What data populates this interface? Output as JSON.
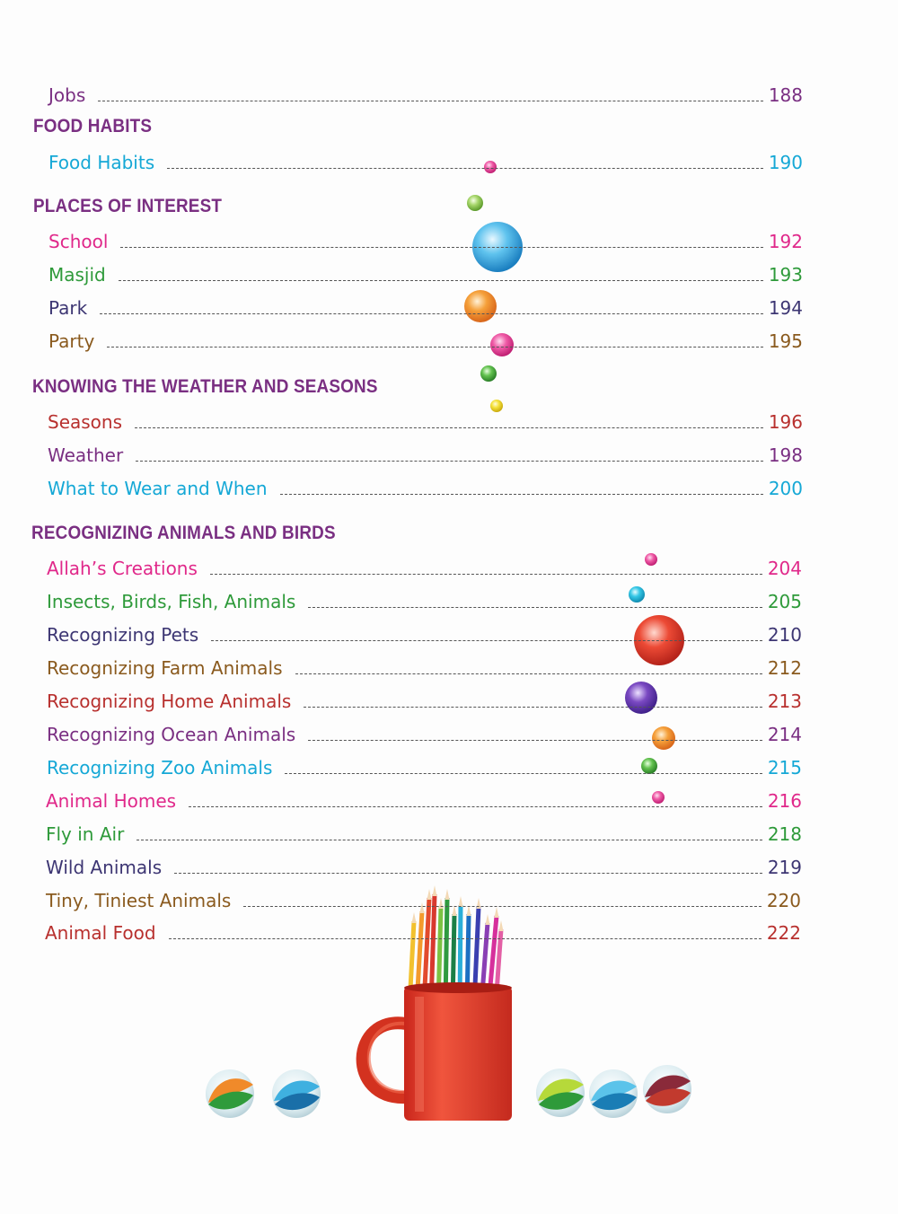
{
  "colors": {
    "heading": "#7a2f82",
    "purple": "#7a2f82",
    "cyan": "#15a8d6",
    "pink": "#e0288a",
    "green": "#2e9a3a",
    "navy": "#3d3673",
    "brown": "#8a5a1e",
    "red": "#b8302e",
    "mug": "#e8382a"
  },
  "sections": [
    {
      "title": "",
      "entries": [
        {
          "label": "Jobs",
          "page": "188",
          "color": "#7a2f82"
        }
      ]
    },
    {
      "title": "FOOD HABITS",
      "entries": [
        {
          "label": "Food Habits",
          "page": "190",
          "color": "#15a8d6"
        }
      ]
    },
    {
      "title": "PLACES OF INTEREST",
      "entries": [
        {
          "label": "School",
          "page": "192",
          "color": "#e0288a"
        },
        {
          "label": "Masjid",
          "page": "193",
          "color": "#2e9a3a"
        },
        {
          "label": "Park",
          "page": "194",
          "color": "#3d3673"
        },
        {
          "label": "Party",
          "page": "195",
          "color": "#8a5a1e"
        }
      ]
    },
    {
      "title": "KNOWING THE WEATHER AND SEASONS",
      "entries": [
        {
          "label": "Seasons",
          "page": "196",
          "color": "#b8302e"
        },
        {
          "label": "Weather",
          "page": "198",
          "color": "#7a2f82"
        },
        {
          "label": "What to Wear and When",
          "page": "200",
          "color": "#15a8d6"
        }
      ]
    },
    {
      "title": "RECOGNIZING ANIMALS AND BIRDS",
      "entries": [
        {
          "label": "Allah’s Creations",
          "page": "204",
          "color": "#e0288a"
        },
        {
          "label": "Insects, Birds, Fish, Animals",
          "page": "205",
          "color": "#2e9a3a"
        },
        {
          "label": "Recognizing Pets",
          "page": "210",
          "color": "#3d3673"
        },
        {
          "label": "Recognizing Farm Animals",
          "page": "212",
          "color": "#8a5a1e"
        },
        {
          "label": "Recognizing Home Animals",
          "page": "213",
          "color": "#b8302e"
        },
        {
          "label": "Recognizing Ocean Animals",
          "page": "214",
          "color": "#7a2f82"
        },
        {
          "label": "Recognizing Zoo Animals",
          "page": "215",
          "color": "#15a8d6"
        },
        {
          "label": "Animal Homes",
          "page": "216",
          "color": "#e0288a"
        },
        {
          "label": "Fly in Air",
          "page": "218",
          "color": "#2e9a3a"
        },
        {
          "label": "Wild Animals",
          "page": "219",
          "color": "#3d3673"
        },
        {
          "label": "Tiny, Tiniest Animals",
          "page": "220",
          "color": "#8a5a1e"
        },
        {
          "label": "Animal Food",
          "page": "222",
          "color": "#b8302e"
        }
      ]
    }
  ],
  "decorations": {
    "illustration": "pencil-cup-icon",
    "marbles": "marble-icon",
    "bubbles": "bubble-icon"
  }
}
